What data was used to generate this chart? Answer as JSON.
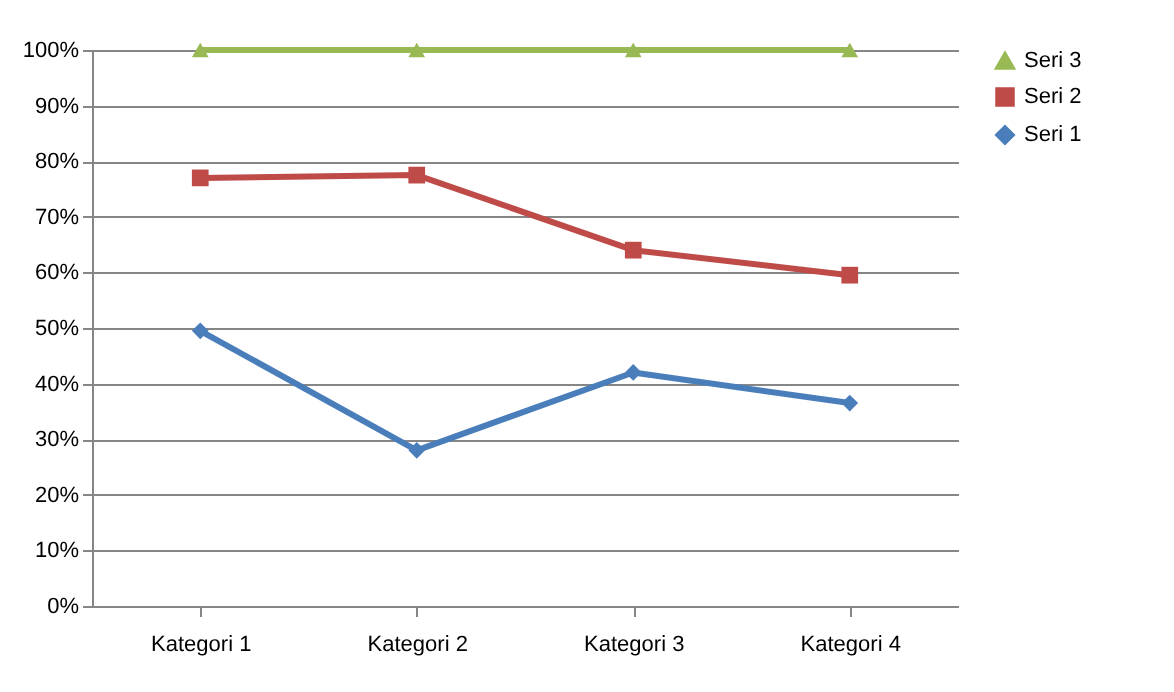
{
  "chart_data": {
    "type": "line",
    "categories": [
      "Kategori 1",
      "Kategori 2",
      "Kategori 3",
      "Kategori 4"
    ],
    "series": [
      {
        "name": "Seri 1",
        "color": "#4a7ebb",
        "marker": "diamond",
        "values": [
          49.5,
          28,
          42,
          36.5
        ]
      },
      {
        "name": "Seri 2",
        "color": "#be4b48",
        "marker": "square",
        "values": [
          77,
          77.5,
          64,
          59.5
        ]
      },
      {
        "name": "Seri 3",
        "color": "#98b954",
        "marker": "triangle",
        "values": [
          100,
          100,
          100,
          100
        ]
      }
    ],
    "ylim": [
      0,
      100
    ],
    "yticks": [
      {
        "value": 0,
        "label": "0%"
      },
      {
        "value": 10,
        "label": "10%"
      },
      {
        "value": 20,
        "label": "20%"
      },
      {
        "value": 30,
        "label": "30%"
      },
      {
        "value": 40,
        "label": "40%"
      },
      {
        "value": 50,
        "label": "50%"
      },
      {
        "value": 60,
        "label": "60%"
      },
      {
        "value": 70,
        "label": "70%"
      },
      {
        "value": 80,
        "label": "80%"
      },
      {
        "value": 90,
        "label": "90%"
      },
      {
        "value": 100,
        "label": "100%"
      }
    ],
    "grid": "y",
    "legend": "right",
    "line_style": "solid"
  }
}
